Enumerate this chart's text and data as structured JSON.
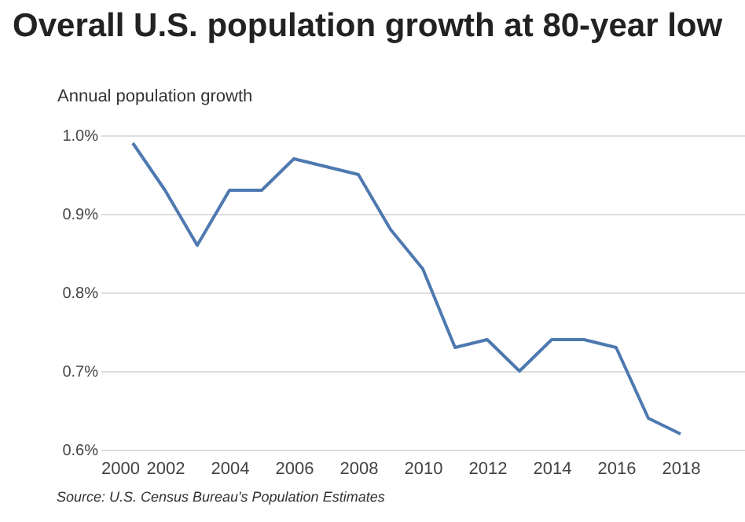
{
  "chart_data": {
    "type": "line",
    "title": "Overall U.S. population growth at 80-year low",
    "ylabel": "Annual population growth",
    "annotations": [
      "Source: U.S. Census Bureau's Population Estimates"
    ],
    "x": [
      2001,
      2002,
      2003,
      2004,
      2005,
      2006,
      2007,
      2008,
      2009,
      2010,
      2011,
      2012,
      2013,
      2014,
      2015,
      2016,
      2017,
      2018
    ],
    "series": [
      {
        "color": "#4e79b0",
        "values": [
          0.99,
          0.93,
          0.86,
          0.93,
          0.93,
          0.97,
          0.96,
          0.95,
          0.88,
          0.83,
          0.73,
          0.74,
          0.7,
          0.74,
          0.74,
          0.73,
          0.64,
          0.62
        ]
      }
    ],
    "xlim": [
      2000,
      2020
    ],
    "xticks": [
      2000,
      2002,
      2004,
      2006,
      2008,
      2010,
      2012,
      2014,
      2016,
      2018
    ],
    "ylim": [
      0.6,
      1.0
    ],
    "yticks": [
      {
        "value": 0.6,
        "label": "0.6%"
      },
      {
        "value": 0.7,
        "label": "0.7%"
      },
      {
        "value": 0.8,
        "label": "0.8%"
      },
      {
        "value": 0.9,
        "label": "0.9%"
      },
      {
        "value": 1.0,
        "label": "1.0%"
      }
    ],
    "grid": "y",
    "marker": "none",
    "line_style": "solid"
  }
}
